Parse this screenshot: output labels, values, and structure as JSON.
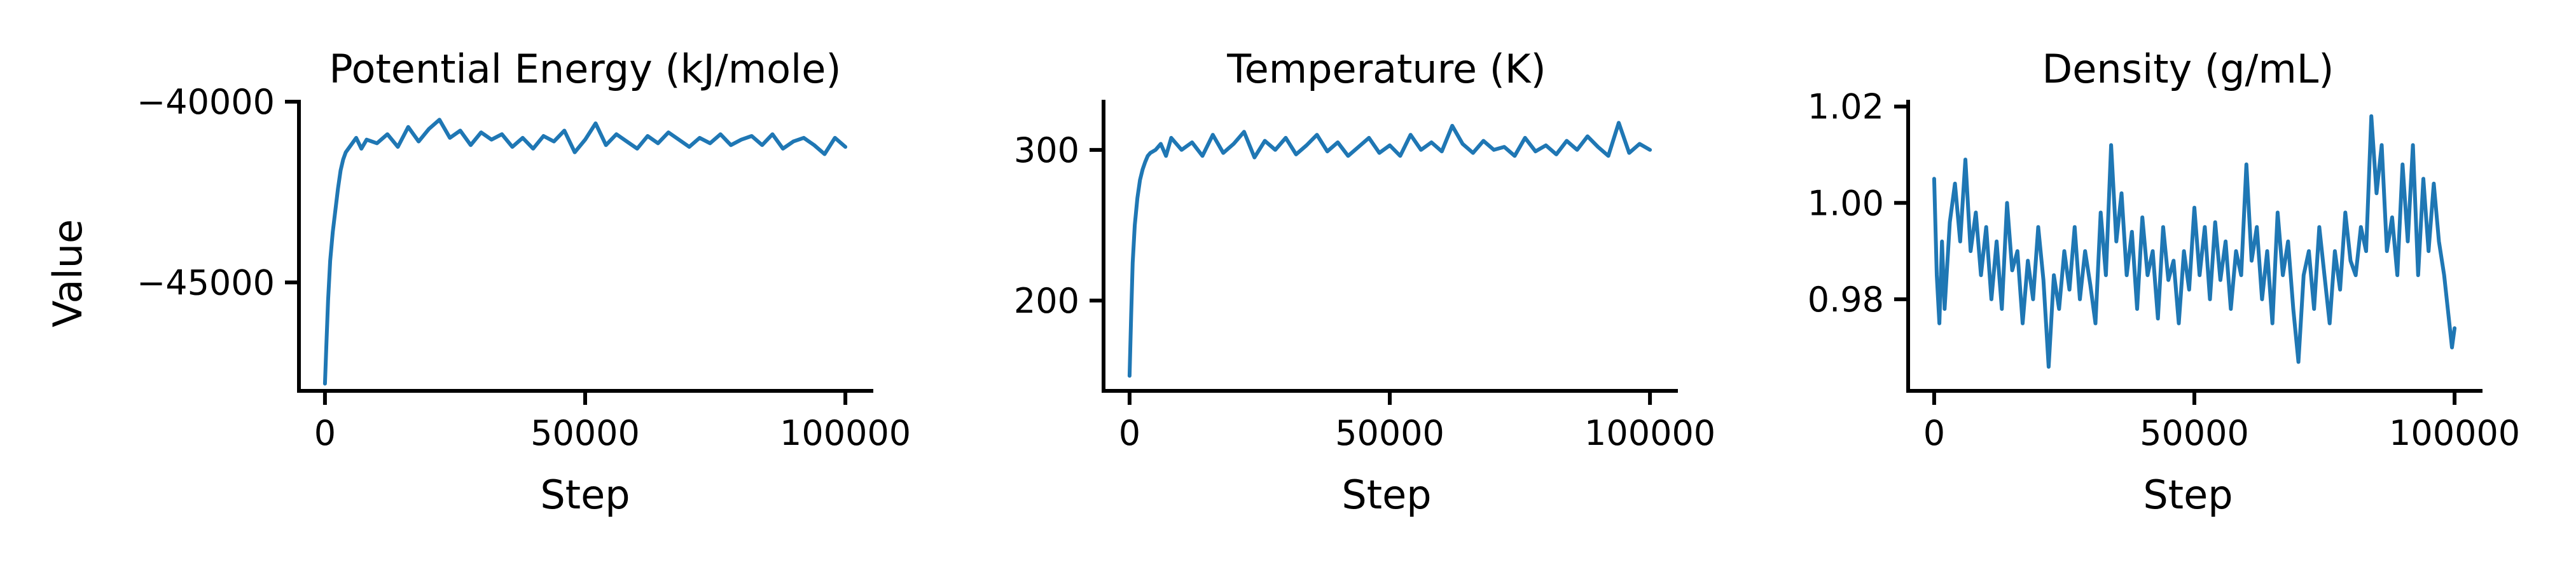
{
  "figure": {
    "ylabel": "Value",
    "series_color": "#1f77b4"
  },
  "chart_data": [
    {
      "type": "line",
      "title": "Potential Energy (kJ/mole)",
      "xlabel": "Step",
      "ylabel": "Value",
      "xlim": [
        -5000,
        105000
      ],
      "ylim": [
        -48000,
        -40000
      ],
      "xticks": [
        0,
        50000,
        100000
      ],
      "xtick_labels": [
        "0",
        "50000",
        "100000"
      ],
      "yticks": [
        -45000,
        -40000
      ],
      "ytick_labels": [
        "−45000",
        "−40000"
      ],
      "grid": false,
      "series": [
        {
          "color": "#1f77b4",
          "x": [
            0,
            300,
            600,
            1000,
            1500,
            2000,
            2500,
            3000,
            3500,
            4000,
            5000,
            6000,
            7000,
            8000,
            10000,
            12000,
            14000,
            16000,
            18000,
            20000,
            22000,
            24000,
            26000,
            28000,
            30000,
            32000,
            34000,
            36000,
            38000,
            40000,
            42000,
            44000,
            46000,
            48000,
            50000,
            52000,
            54000,
            56000,
            58000,
            60000,
            62000,
            64000,
            66000,
            68000,
            70000,
            72000,
            74000,
            76000,
            78000,
            80000,
            82000,
            84000,
            86000,
            88000,
            90000,
            92000,
            94000,
            96000,
            98000,
            100000
          ],
          "y": [
            -47800,
            -46600,
            -45500,
            -44400,
            -43600,
            -43000,
            -42400,
            -41900,
            -41600,
            -41400,
            -41200,
            -41000,
            -41300,
            -41050,
            -41150,
            -40900,
            -41250,
            -40700,
            -41100,
            -40750,
            -40500,
            -41000,
            -40800,
            -41200,
            -40850,
            -41050,
            -40900,
            -41250,
            -41000,
            -41300,
            -40950,
            -41100,
            -40800,
            -41400,
            -41050,
            -40600,
            -41200,
            -40900,
            -41100,
            -41300,
            -40950,
            -41150,
            -40850,
            -41050,
            -41250,
            -41000,
            -41150,
            -40900,
            -41200,
            -41050,
            -40950,
            -41200,
            -40900,
            -41300,
            -41100,
            -41000,
            -41200,
            -41450,
            -41000,
            -41250
          ]
        }
      ]
    },
    {
      "type": "line",
      "title": "Temperature (K)",
      "xlabel": "Step",
      "ylabel": "",
      "xlim": [
        -5000,
        105000
      ],
      "ylim": [
        140,
        332
      ],
      "xticks": [
        0,
        50000,
        100000
      ],
      "xtick_labels": [
        "0",
        "50000",
        "100000"
      ],
      "yticks": [
        200,
        300
      ],
      "ytick_labels": [
        "200",
        "300"
      ],
      "grid": false,
      "series": [
        {
          "color": "#1f77b4",
          "x": [
            0,
            300,
            600,
            1000,
            1500,
            2000,
            2500,
            3000,
            3500,
            4000,
            5000,
            6000,
            7000,
            8000,
            10000,
            12000,
            14000,
            16000,
            18000,
            20000,
            22000,
            24000,
            26000,
            28000,
            30000,
            32000,
            34000,
            36000,
            38000,
            40000,
            42000,
            44000,
            46000,
            48000,
            50000,
            52000,
            54000,
            56000,
            58000,
            60000,
            62000,
            64000,
            66000,
            68000,
            70000,
            72000,
            74000,
            76000,
            78000,
            80000,
            82000,
            84000,
            86000,
            88000,
            90000,
            92000,
            94000,
            96000,
            98000,
            100000
          ],
          "y": [
            150,
            190,
            225,
            250,
            268,
            280,
            287,
            292,
            296,
            298,
            300,
            304,
            296,
            308,
            300,
            305,
            296,
            310,
            298,
            304,
            312,
            295,
            306,
            300,
            308,
            297,
            303,
            310,
            299,
            305,
            296,
            302,
            308,
            298,
            303,
            296,
            310,
            300,
            305,
            299,
            316,
            304,
            298,
            306,
            300,
            302,
            296,
            308,
            299,
            303,
            297,
            306,
            300,
            309,
            302,
            296,
            318,
            298,
            304,
            300
          ]
        }
      ]
    },
    {
      "type": "line",
      "title": "Density (g/mL)",
      "xlabel": "Step",
      "ylabel": "",
      "xlim": [
        -5000,
        105000
      ],
      "ylim": [
        0.961,
        1.021
      ],
      "xticks": [
        0,
        50000,
        100000
      ],
      "xtick_labels": [
        "0",
        "50000",
        "100000"
      ],
      "yticks": [
        0.98,
        1.0,
        1.02
      ],
      "ytick_labels": [
        "0.98",
        "1.00",
        "1.02"
      ],
      "grid": false,
      "series": [
        {
          "color": "#1f77b4",
          "x": [
            0,
            500,
            1000,
            1500,
            2000,
            3000,
            4000,
            5000,
            6000,
            7000,
            8000,
            9000,
            10000,
            11000,
            12000,
            13000,
            14000,
            15000,
            16000,
            17000,
            18000,
            19000,
            20000,
            21000,
            22000,
            23000,
            24000,
            25000,
            26000,
            27000,
            28000,
            29000,
            30000,
            31000,
            32000,
            33000,
            34000,
            35000,
            36000,
            37000,
            38000,
            39000,
            40000,
            41000,
            42000,
            43000,
            44000,
            45000,
            46000,
            47000,
            48000,
            49000,
            50000,
            51000,
            52000,
            53000,
            54000,
            55000,
            56000,
            57000,
            58000,
            59000,
            60000,
            61000,
            62000,
            63000,
            64000,
            65000,
            66000,
            67000,
            68000,
            69000,
            70000,
            71000,
            72000,
            73000,
            74000,
            75000,
            76000,
            77000,
            78000,
            79000,
            80000,
            81000,
            82000,
            83000,
            84000,
            85000,
            86000,
            87000,
            88000,
            89000,
            90000,
            91000,
            92000,
            93000,
            94000,
            95000,
            96000,
            97000,
            98000,
            99000,
            99500,
            100000
          ],
          "y": [
            1.005,
            0.985,
            0.975,
            0.992,
            0.978,
            0.996,
            1.004,
            0.992,
            1.009,
            0.99,
            0.998,
            0.985,
            0.995,
            0.98,
            0.992,
            0.978,
            1.0,
            0.986,
            0.99,
            0.975,
            0.988,
            0.98,
            0.995,
            0.984,
            0.966,
            0.985,
            0.978,
            0.99,
            0.982,
            0.995,
            0.98,
            0.99,
            0.983,
            0.975,
            0.998,
            0.985,
            1.012,
            0.992,
            1.002,
            0.985,
            0.994,
            0.978,
            0.997,
            0.985,
            0.99,
            0.976,
            0.995,
            0.984,
            0.988,
            0.975,
            0.99,
            0.982,
            0.999,
            0.985,
            0.995,
            0.98,
            0.996,
            0.984,
            0.992,
            0.978,
            0.99,
            0.985,
            1.008,
            0.988,
            0.995,
            0.98,
            0.99,
            0.975,
            0.998,
            0.985,
            0.992,
            0.978,
            0.967,
            0.985,
            0.99,
            0.978,
            0.995,
            0.985,
            0.975,
            0.99,
            0.982,
            0.998,
            0.988,
            0.985,
            0.995,
            0.99,
            1.018,
            1.002,
            1.012,
            0.99,
            0.997,
            0.985,
            1.008,
            0.992,
            1.012,
            0.985,
            1.005,
            0.99,
            1.004,
            0.992,
            0.985,
            0.975,
            0.97,
            0.974
          ]
        }
      ]
    }
  ]
}
